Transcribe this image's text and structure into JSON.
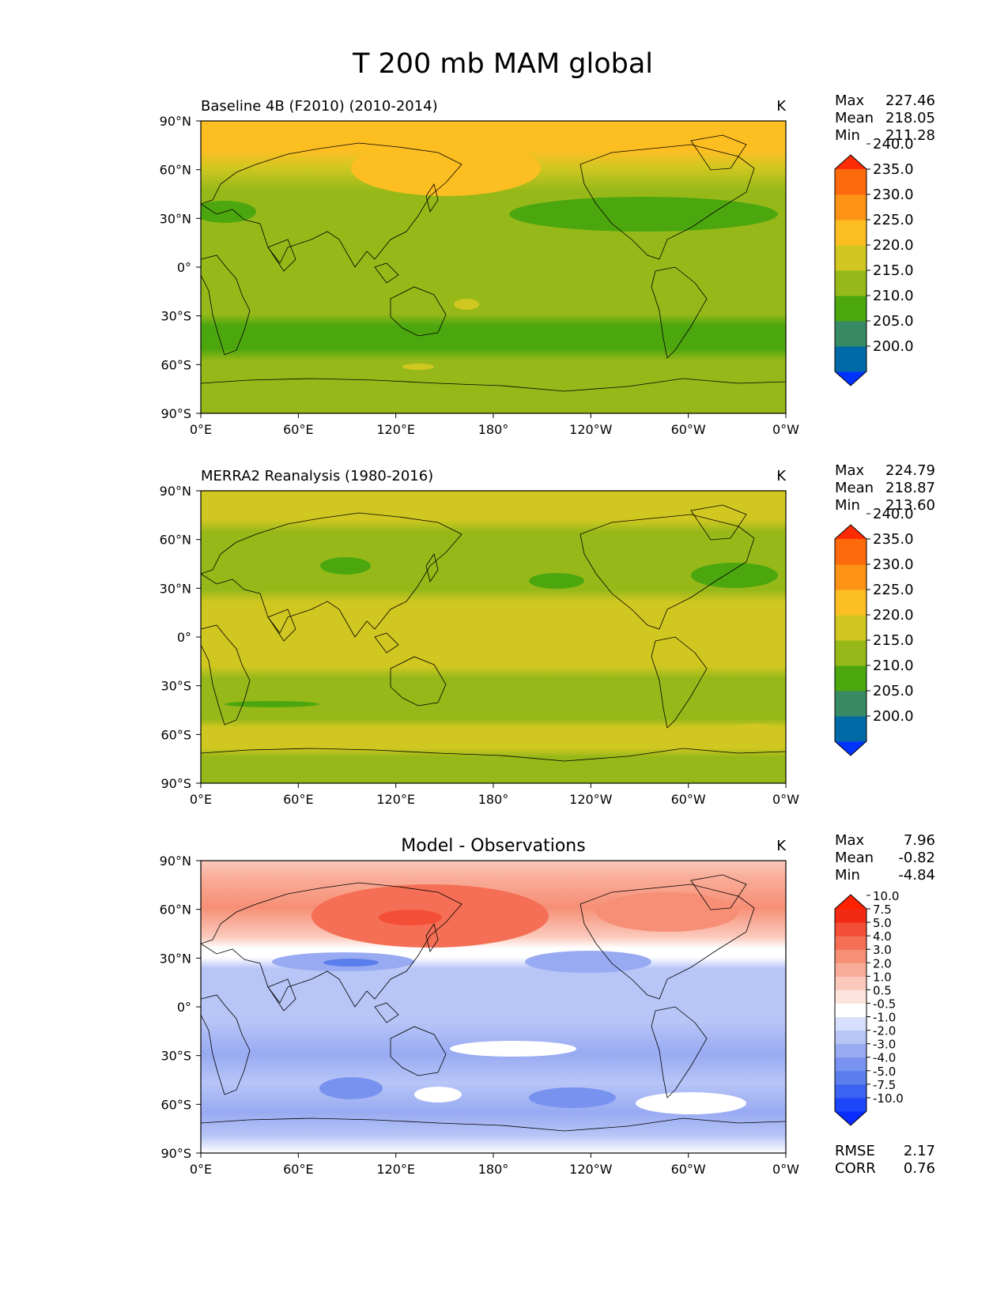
{
  "figure": {
    "title": "T 200 mb MAM global"
  },
  "axes": {
    "lat_labels": [
      "90°N",
      "60°N",
      "30°N",
      "0°",
      "30°S",
      "60°S",
      "90°S"
    ],
    "lon_labels": [
      "0°E",
      "60°E",
      "120°E",
      "180°",
      "120°W",
      "60°W",
      "0°W"
    ]
  },
  "panels": [
    {
      "id": "model",
      "title": "Baseline 4B (F2010) (2010-2014)",
      "units": "K",
      "stats": [
        {
          "label": "Max",
          "value": "227.46"
        },
        {
          "label": "Mean",
          "value": "218.05"
        },
        {
          "label": "Min",
          "value": "211.28"
        }
      ],
      "colorbar": {
        "levels": [
          "200.0",
          "205.0",
          "210.0",
          "215.0",
          "220.0",
          "225.0",
          "230.0",
          "235.0",
          "240.0"
        ],
        "colors": [
          "#0033ff",
          "#006aa7",
          "#378a63",
          "#4ca70f",
          "#96b919",
          "#d1c721",
          "#fdbe22",
          "#fc9314",
          "#fd6a0b",
          "#fd2c05"
        ]
      }
    },
    {
      "id": "obs",
      "title": "MERRA2 Reanalysis (1980-2016)",
      "units": "K",
      "stats": [
        {
          "label": "Max",
          "value": "224.79"
        },
        {
          "label": "Mean",
          "value": "218.87"
        },
        {
          "label": "Min",
          "value": "213.60"
        }
      ],
      "colorbar": {
        "levels": [
          "200.0",
          "205.0",
          "210.0",
          "215.0",
          "220.0",
          "225.0",
          "230.0",
          "235.0",
          "240.0"
        ],
        "colors": [
          "#0033ff",
          "#006aa7",
          "#378a63",
          "#4ca70f",
          "#96b919",
          "#d1c721",
          "#fdbe22",
          "#fc9314",
          "#fd6a0b",
          "#fd2c05"
        ]
      }
    },
    {
      "id": "diff",
      "title": "Model - Observations",
      "units": "K",
      "stats": [
        {
          "label": "Max",
          "value": "7.96"
        },
        {
          "label": "Mean",
          "value": "-0.82"
        },
        {
          "label": "Min",
          "value": "-4.84"
        }
      ],
      "metrics": [
        {
          "label": "RMSE",
          "value": "2.17"
        },
        {
          "label": "CORR",
          "value": "0.76"
        }
      ],
      "colorbar": {
        "levels": [
          "-10.0",
          "-7.5",
          "-5.0",
          "-4.0",
          "-3.0",
          "-2.0",
          "-1.0",
          "-0.5",
          "0.5",
          "1.0",
          "2.0",
          "3.0",
          "4.0",
          "5.0",
          "7.5",
          "10.0"
        ],
        "colors": [
          "#0a2cff",
          "#1c46f9",
          "#3b62f0",
          "#5a7eec",
          "#7892ef",
          "#98aaf2",
          "#b7c5f7",
          "#d6dffb",
          "#ffffff",
          "#fde3dc",
          "#fbc9bc",
          "#f9ac98",
          "#f68f76",
          "#f46f55",
          "#f44f36",
          "#f22a14",
          "#ff2200"
        ]
      }
    }
  ]
}
